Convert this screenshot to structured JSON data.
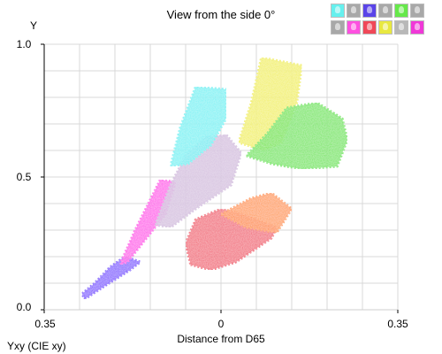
{
  "chart_data": {
    "type": "scatter",
    "title": "View from the side 0°",
    "ylabel": "Y",
    "xlabel": "Distance from D65",
    "caption": "Yxy (CIE xy)",
    "xlim": [
      -0.35,
      0.35
    ],
    "ylim": [
      0.0,
      1.0
    ],
    "x_ticks": [
      "0.35",
      "0",
      "0.35"
    ],
    "y_ticks": [
      "1.0",
      "0.5",
      "0.0"
    ],
    "grid": true,
    "clusters": [
      {
        "color": "#7030ff",
        "polygon": [
          [
            -0.27,
            0.04
          ],
          [
            -0.23,
            0.09
          ],
          [
            -0.18,
            0.15
          ],
          [
            -0.16,
            0.18
          ],
          [
            -0.19,
            0.2
          ],
          [
            -0.22,
            0.16
          ],
          [
            -0.25,
            0.1
          ],
          [
            -0.275,
            0.06
          ]
        ]
      },
      {
        "color": "#ff30e8",
        "polygon": [
          [
            -0.2,
            0.17
          ],
          [
            -0.17,
            0.3
          ],
          [
            -0.12,
            0.49
          ],
          [
            -0.09,
            0.48
          ],
          [
            -0.11,
            0.36
          ],
          [
            -0.16,
            0.24
          ],
          [
            -0.185,
            0.18
          ]
        ]
      },
      {
        "color": "#d0b8dc",
        "polygon": [
          [
            -0.13,
            0.32
          ],
          [
            -0.1,
            0.47
          ],
          [
            -0.07,
            0.58
          ],
          [
            -0.03,
            0.65
          ],
          [
            0.01,
            0.66
          ],
          [
            0.04,
            0.59
          ],
          [
            0.02,
            0.47
          ],
          [
            -0.05,
            0.38
          ],
          [
            -0.1,
            0.31
          ]
        ]
      },
      {
        "color": "#60f0f2",
        "polygon": [
          [
            -0.1,
            0.54
          ],
          [
            -0.08,
            0.69
          ],
          [
            -0.05,
            0.84
          ],
          [
            0.01,
            0.83
          ],
          [
            0.01,
            0.72
          ],
          [
            -0.02,
            0.62
          ],
          [
            -0.065,
            0.55
          ]
        ]
      },
      {
        "color": "#f0ee40",
        "polygon": [
          [
            0.035,
            0.63
          ],
          [
            0.06,
            0.78
          ],
          [
            0.08,
            0.95
          ],
          [
            0.16,
            0.92
          ],
          [
            0.15,
            0.78
          ],
          [
            0.12,
            0.63
          ],
          [
            0.085,
            0.6
          ]
        ]
      },
      {
        "color": "#5ee43c",
        "polygon": [
          [
            0.05,
            0.58
          ],
          [
            0.1,
            0.55
          ],
          [
            0.16,
            0.53
          ],
          [
            0.23,
            0.54
          ],
          [
            0.25,
            0.64
          ],
          [
            0.24,
            0.72
          ],
          [
            0.19,
            0.78
          ],
          [
            0.13,
            0.76
          ],
          [
            0.09,
            0.66
          ]
        ]
      },
      {
        "color": "#f04860",
        "polygon": [
          [
            -0.06,
            0.17
          ],
          [
            -0.02,
            0.15
          ],
          [
            0.03,
            0.18
          ],
          [
            0.1,
            0.27
          ],
          [
            0.11,
            0.31
          ],
          [
            0.04,
            0.36
          ],
          [
            0.0,
            0.38
          ],
          [
            -0.05,
            0.34
          ],
          [
            -0.07,
            0.25
          ]
        ]
      },
      {
        "color": "#ff9030",
        "polygon": [
          [
            0.0,
            0.36
          ],
          [
            0.06,
            0.42
          ],
          [
            0.1,
            0.44
          ],
          [
            0.14,
            0.38
          ],
          [
            0.11,
            0.29
          ],
          [
            0.05,
            0.31
          ]
        ]
      }
    ],
    "thumbnails": [
      "#66f0ee",
      "#a8a8a8",
      "#5a44e8",
      "#a8a8a8",
      "#66e84a",
      "#a8a8a8",
      "#a8a8a8",
      "#ff50e0",
      "#f04858",
      "#e8e840",
      "#b8b8b8",
      "#f038d8"
    ]
  }
}
